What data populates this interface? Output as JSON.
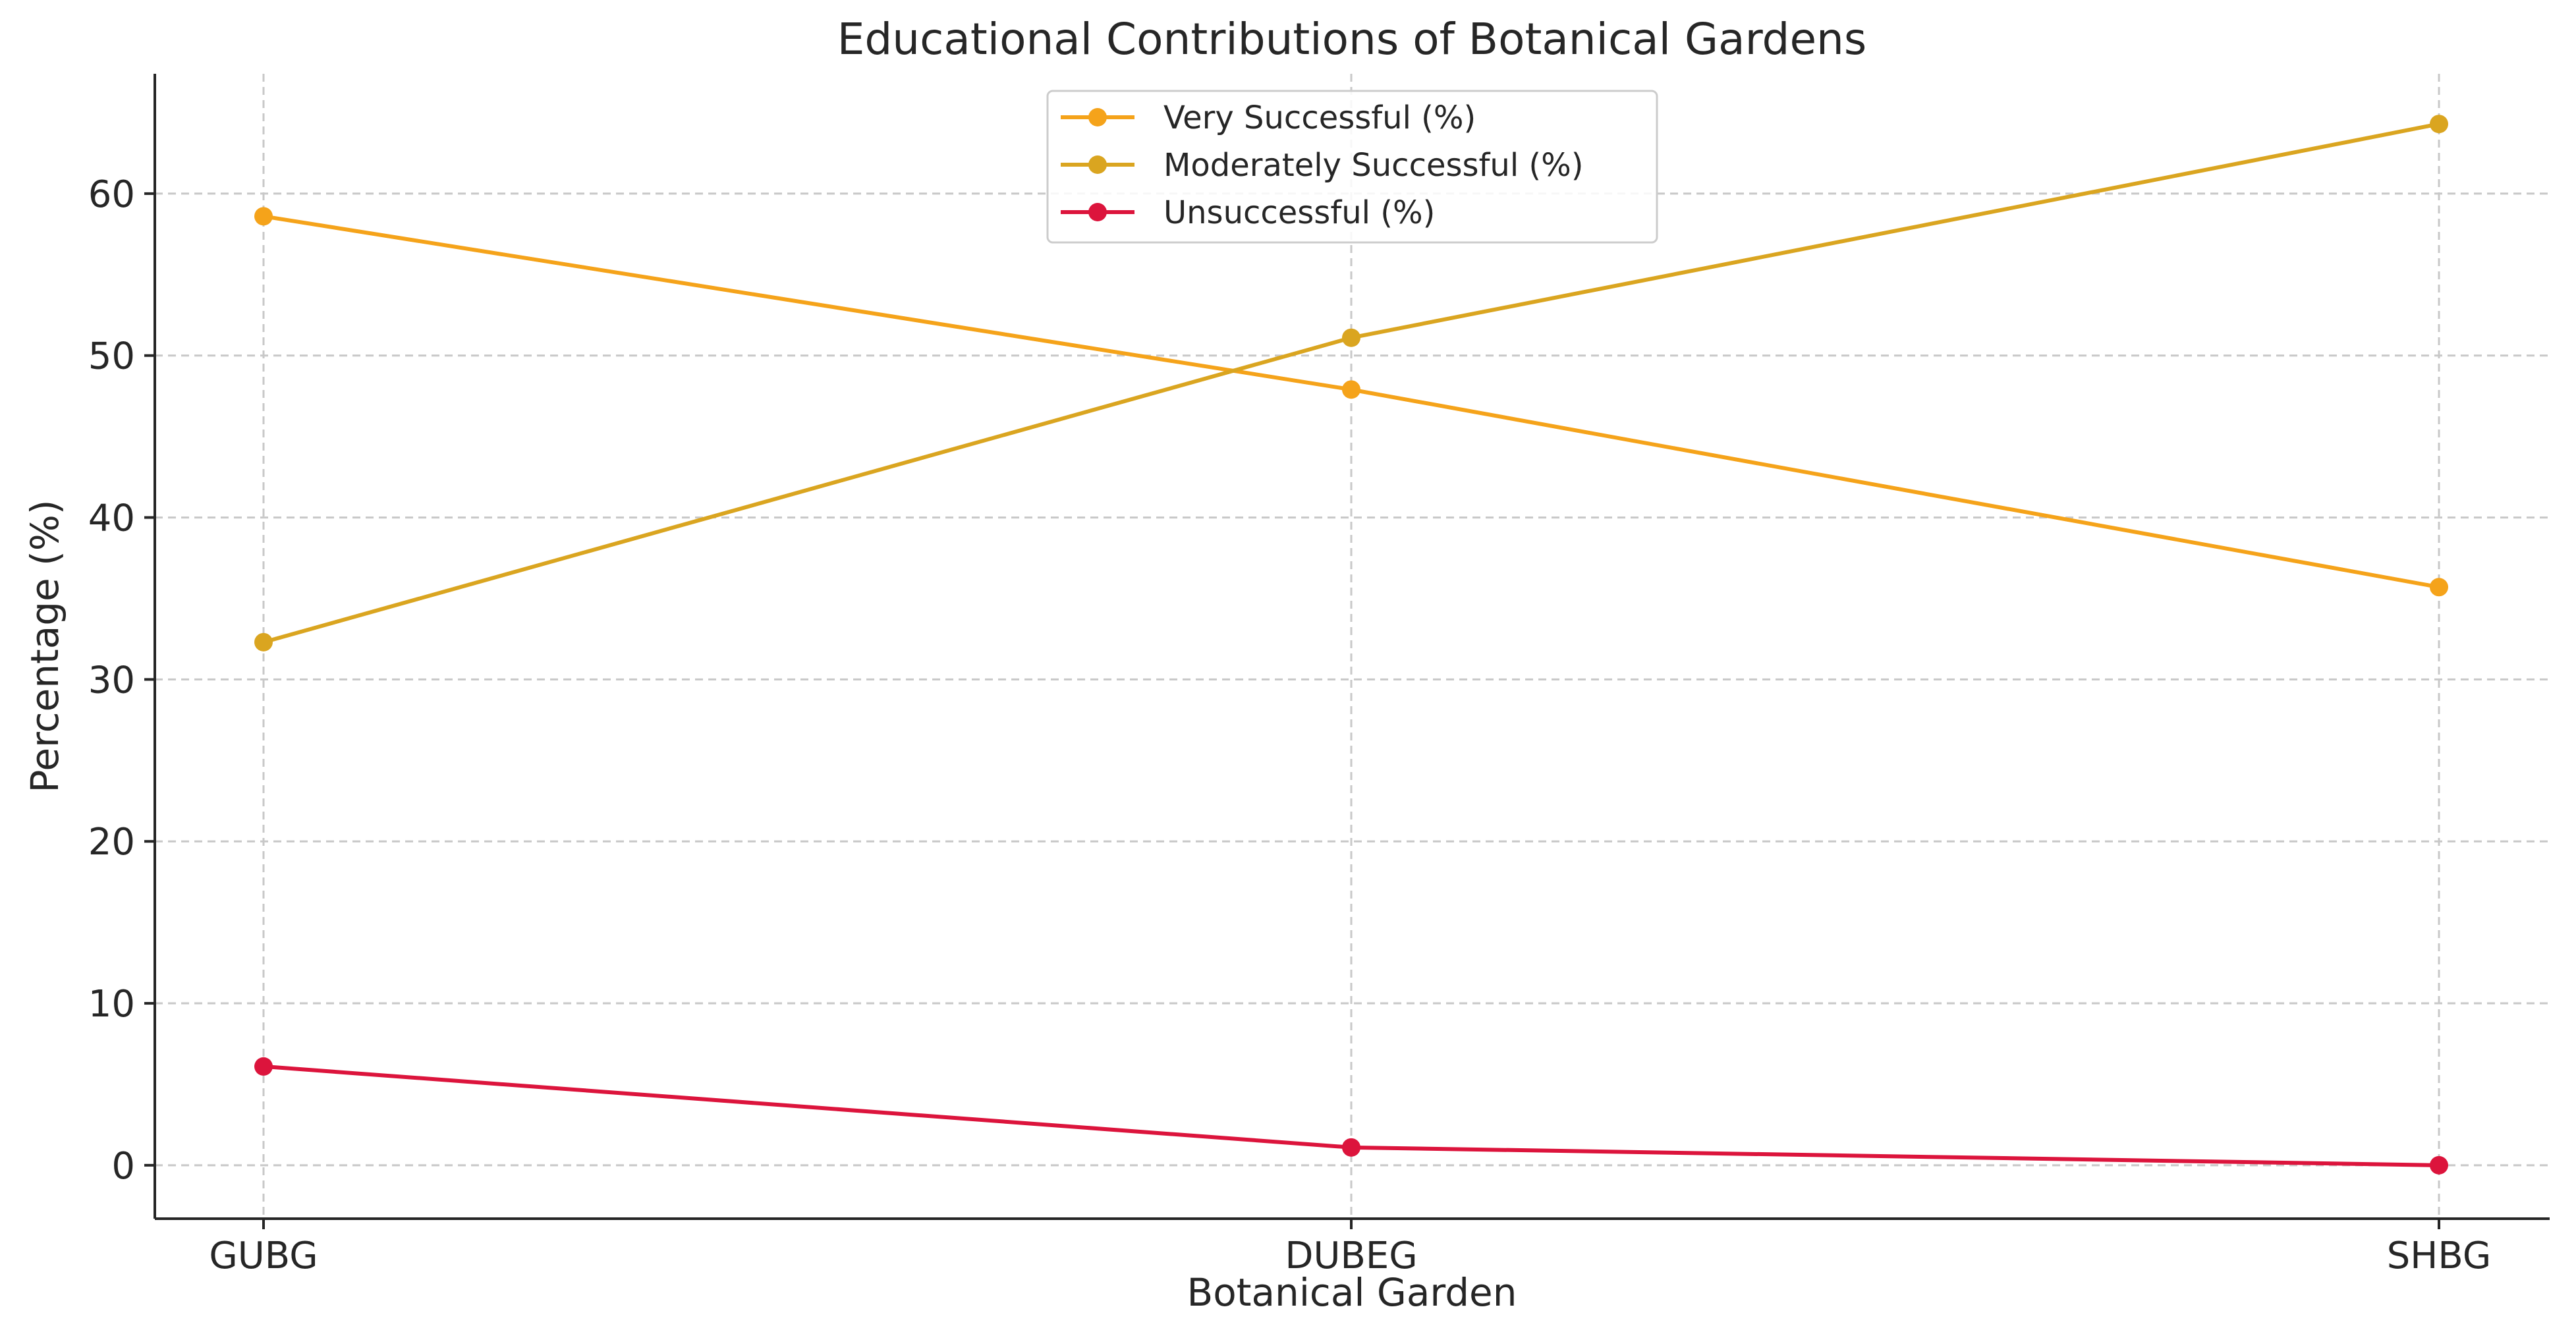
{
  "chart_data": {
    "type": "line",
    "title": "Educational Contributions of Botanical Gardens",
    "xlabel": "Botanical Garden",
    "ylabel": "Percentage (%)",
    "categories": [
      "GUBG",
      "DUBEG",
      "SHBG"
    ],
    "ylim": [
      -3.3,
      67.4
    ],
    "yticks": [
      0,
      10,
      20,
      30,
      40,
      50,
      60
    ],
    "grid": true,
    "legend_position": "top-center",
    "series": [
      {
        "name": "Very Successful (%)",
        "color": "#f5a31a",
        "values": [
          58.6,
          47.9,
          35.7
        ]
      },
      {
        "name": "Moderately Successful (%)",
        "color": "#daa520",
        "values": [
          32.3,
          51.1,
          64.3
        ]
      },
      {
        "name": "Unsuccessful (%)",
        "color": "#dc143c",
        "values": [
          6.1,
          1.1,
          0.0
        ]
      }
    ]
  }
}
